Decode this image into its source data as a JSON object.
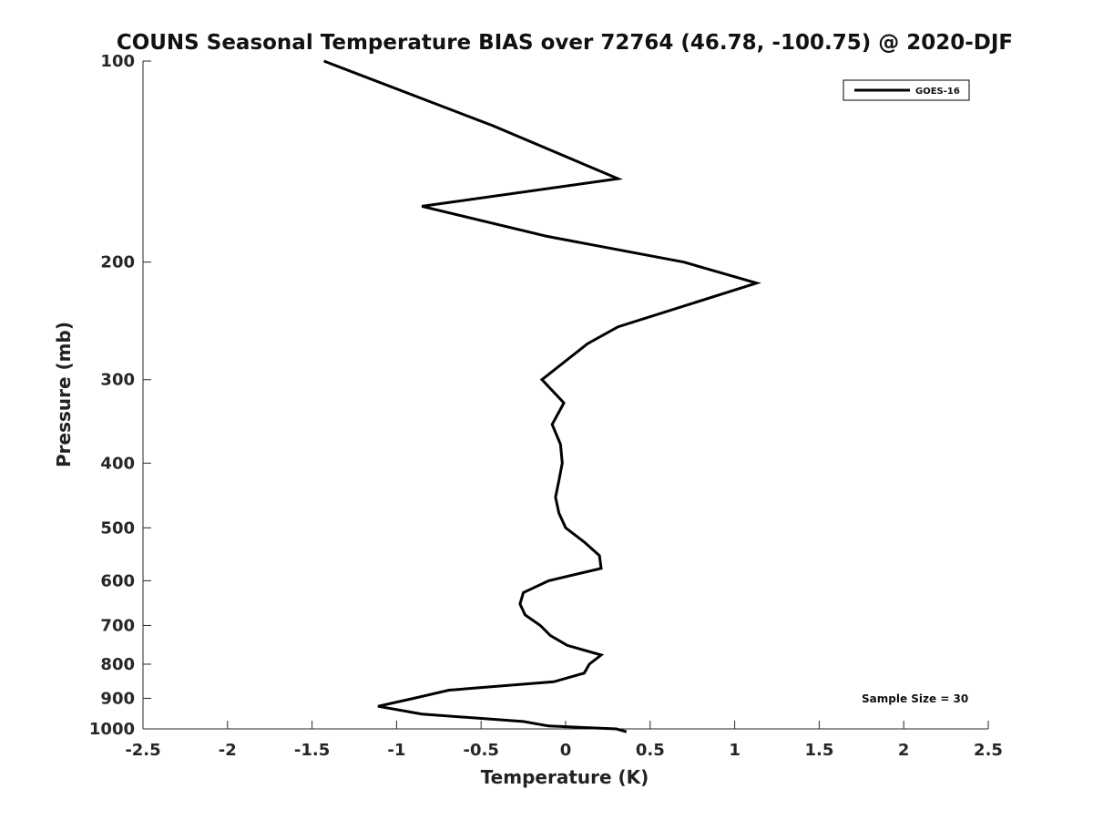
{
  "chart_data": {
    "type": "line",
    "title": "COUNS Seasonal Temperature BIAS over 72764 (46.78, -100.75) @ 2020-DJF",
    "xlabel": "Temperature (K)",
    "ylabel": "Pressure (mb)",
    "xlim": [
      -2.5,
      2.5
    ],
    "ylim": [
      100,
      1000
    ],
    "y_scale": "log",
    "y_reversed": true,
    "x_ticks": [
      "-2.5",
      "-2",
      "-1.5",
      "-1",
      "-0.5",
      "0",
      "0.5",
      "1",
      "1.5",
      "2",
      "2.5"
    ],
    "y_ticks": [
      "100",
      "200",
      "300",
      "400",
      "500",
      "600",
      "700",
      "800",
      "900",
      "1000"
    ],
    "legend": {
      "position": "top-right",
      "entries": [
        "GOES-16"
      ]
    },
    "annotation": "Sample Size = 30",
    "series": [
      {
        "name": "GOES-16",
        "color": "#000000",
        "points": [
          [
            -1.43,
            100
          ],
          [
            -0.43,
            125
          ],
          [
            0.31,
            150
          ],
          [
            -0.85,
            165
          ],
          [
            -0.11,
            183
          ],
          [
            0.7,
            200
          ],
          [
            1.13,
            215
          ],
          [
            0.31,
            250
          ],
          [
            0.13,
            265
          ],
          [
            -0.14,
            300
          ],
          [
            -0.01,
            325
          ],
          [
            -0.08,
            350
          ],
          [
            -0.03,
            375
          ],
          [
            -0.02,
            400
          ],
          [
            -0.04,
            425
          ],
          [
            -0.06,
            450
          ],
          [
            -0.04,
            475
          ],
          [
            0.0,
            500
          ],
          [
            0.11,
            525
          ],
          [
            0.2,
            550
          ],
          [
            0.21,
            575
          ],
          [
            -0.1,
            600
          ],
          [
            -0.25,
            625
          ],
          [
            -0.27,
            650
          ],
          [
            -0.24,
            675
          ],
          [
            -0.15,
            700
          ],
          [
            -0.09,
            725
          ],
          [
            0.01,
            750
          ],
          [
            0.21,
            775
          ],
          [
            0.14,
            800
          ],
          [
            0.11,
            825
          ],
          [
            -0.07,
            850
          ],
          [
            -0.69,
            875
          ],
          [
            -0.9,
            900
          ],
          [
            -1.11,
            925
          ],
          [
            -0.85,
            950
          ],
          [
            -0.25,
            975
          ],
          [
            -0.1,
            990
          ],
          [
            0.3,
            1000
          ],
          [
            0.36,
            1010
          ]
        ]
      }
    ]
  }
}
